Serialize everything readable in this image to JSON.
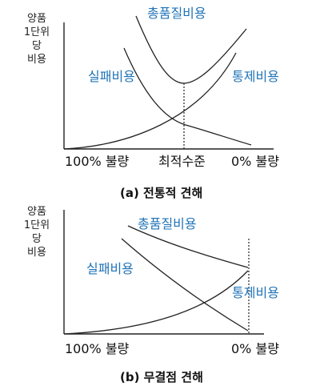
{
  "panel_a": {
    "y_axis_label": [
      "양품",
      "1단위",
      "당",
      "비용"
    ],
    "curve_labels": {
      "total": "총품질비용",
      "failure": "실패비용",
      "control": "통제비용"
    },
    "x_labels": {
      "left": "100% 불량",
      "middle": "최적수준",
      "right": "0% 불량"
    },
    "caption": "(a) 전통적 견해"
  },
  "panel_b": {
    "y_axis_label": [
      "양품",
      "1단위",
      "당",
      "비용"
    ],
    "curve_labels": {
      "total": "총품질비용",
      "failure": "실패비용",
      "control": "통제비용"
    },
    "x_labels": {
      "left": "100% 불량",
      "right": "0% 불량"
    },
    "caption": "(b) 무결점 견해"
  },
  "colors": {
    "label_blue": "#1f73b7",
    "line": "#222222"
  }
}
